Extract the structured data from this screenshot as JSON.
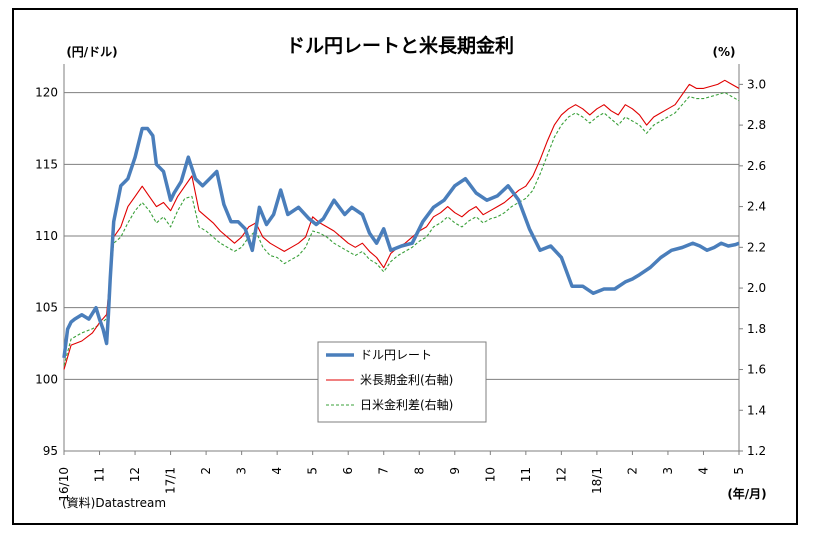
{
  "chart_data": {
    "type": "line",
    "title": "ドル円レートと米長期金利",
    "y_left_unit": "(円/ドル)",
    "y_right_unit": "(%)",
    "x_unit": "(年/月)",
    "source": "(資料)Datastream",
    "ylim_left": [
      95,
      122
    ],
    "ylim_right": [
      1.2,
      3.1
    ],
    "y_left_ticks": [
      "95",
      "100",
      "105",
      "110",
      "115",
      "120"
    ],
    "y_right_ticks": [
      "1.2",
      "1.4",
      "1.6",
      "1.8",
      "2.0",
      "2.2",
      "2.4",
      "2.6",
      "2.8",
      "3.0"
    ],
    "x_ticks": [
      "16/10",
      "11",
      "12",
      "17/1",
      "2",
      "3",
      "4",
      "5",
      "6",
      "7",
      "8",
      "9",
      "10",
      "11",
      "12",
      "18/1",
      "2",
      "3",
      "4",
      "5"
    ],
    "grid": "horizontal",
    "legend_position": "center-bottom",
    "x_range_months": [
      0,
      19
    ],
    "series": [
      {
        "name": "ドル円レート",
        "axis": "left",
        "color": "#4a7ebb",
        "style": "thick",
        "x": [
          0,
          0.1,
          0.2,
          0.3,
          0.5,
          0.7,
          0.9,
          1.0,
          1.1,
          1.2,
          1.25,
          1.3,
          1.4,
          1.6,
          1.8,
          2.0,
          2.2,
          2.35,
          2.5,
          2.6,
          2.8,
          3.0,
          3.1,
          3.3,
          3.5,
          3.7,
          3.9,
          4.1,
          4.3,
          4.5,
          4.7,
          4.9,
          5.1,
          5.3,
          5.5,
          5.7,
          5.9,
          6.1,
          6.3,
          6.6,
          6.9,
          7.1,
          7.3,
          7.6,
          7.9,
          8.1,
          8.4,
          8.6,
          8.8,
          9.0,
          9.2,
          9.5,
          9.8,
          10.1,
          10.4,
          10.7,
          11.0,
          11.3,
          11.6,
          11.9,
          12.2,
          12.5,
          12.8,
          13.1,
          13.4,
          13.7,
          14.0,
          14.3,
          14.6,
          14.9,
          15.2,
          15.5,
          15.8,
          16.0,
          16.2,
          16.5,
          16.8,
          17.1,
          17.4,
          17.7,
          17.9,
          18.1,
          18.3,
          18.5,
          18.7,
          18.9,
          19.0
        ],
        "values": [
          101.5,
          103.5,
          104.0,
          104.2,
          104.5,
          104.2,
          105.0,
          104.2,
          103.5,
          102.5,
          104.5,
          107.0,
          111.0,
          113.5,
          114.0,
          115.5,
          117.5,
          117.5,
          117.0,
          115.0,
          114.5,
          112.5,
          113.0,
          113.8,
          115.5,
          114.0,
          113.5,
          114.0,
          114.5,
          112.2,
          111.0,
          111.0,
          110.5,
          109.0,
          112.0,
          110.8,
          111.5,
          113.2,
          111.5,
          112.0,
          111.2,
          110.8,
          111.2,
          112.5,
          111.5,
          112.0,
          111.5,
          110.2,
          109.5,
          110.5,
          109.0,
          109.3,
          109.5,
          111.0,
          112.0,
          112.5,
          113.5,
          114.0,
          113.0,
          112.5,
          112.8,
          113.5,
          112.5,
          110.5,
          109.0,
          109.3,
          108.5,
          106.5,
          106.5,
          106.0,
          106.3,
          106.3,
          106.8,
          107.0,
          107.3,
          107.8,
          108.5,
          109.0,
          109.2,
          109.5,
          109.3,
          109.0,
          109.2,
          109.5,
          109.3,
          109.4,
          109.5
        ]
      },
      {
        "name": "米長期金利(右軸)",
        "axis": "right",
        "color": "#e00000",
        "style": "thin",
        "x": [
          0,
          0.2,
          0.5,
          0.8,
          1.0,
          1.2,
          1.4,
          1.6,
          1.8,
          2.0,
          2.2,
          2.4,
          2.6,
          2.8,
          3.0,
          3.2,
          3.4,
          3.6,
          3.8,
          4.0,
          4.2,
          4.4,
          4.6,
          4.8,
          5.0,
          5.2,
          5.4,
          5.6,
          5.8,
          6.0,
          6.2,
          6.4,
          6.6,
          6.8,
          7.0,
          7.2,
          7.4,
          7.6,
          7.8,
          8.0,
          8.2,
          8.4,
          8.6,
          8.8,
          9.0,
          9.2,
          9.4,
          9.6,
          9.8,
          10.0,
          10.2,
          10.4,
          10.6,
          10.8,
          11.0,
          11.2,
          11.4,
          11.6,
          11.8,
          12.0,
          12.2,
          12.4,
          12.6,
          12.8,
          13.0,
          13.2,
          13.4,
          13.6,
          13.8,
          14.0,
          14.2,
          14.4,
          14.6,
          14.8,
          15.0,
          15.2,
          15.4,
          15.6,
          15.8,
          16.0,
          16.2,
          16.4,
          16.6,
          16.8,
          17.0,
          17.2,
          17.4,
          17.6,
          17.8,
          18.0,
          18.2,
          18.4,
          18.6,
          18.8,
          19.0
        ],
        "values": [
          1.6,
          1.72,
          1.74,
          1.78,
          1.83,
          1.87,
          2.25,
          2.3,
          2.4,
          2.45,
          2.5,
          2.45,
          2.4,
          2.42,
          2.38,
          2.45,
          2.5,
          2.55,
          2.38,
          2.35,
          2.32,
          2.28,
          2.25,
          2.22,
          2.25,
          2.3,
          2.32,
          2.25,
          2.22,
          2.2,
          2.18,
          2.2,
          2.22,
          2.25,
          2.35,
          2.32,
          2.3,
          2.28,
          2.25,
          2.22,
          2.2,
          2.22,
          2.18,
          2.15,
          2.1,
          2.17,
          2.2,
          2.22,
          2.25,
          2.28,
          2.3,
          2.35,
          2.37,
          2.4,
          2.37,
          2.35,
          2.38,
          2.4,
          2.36,
          2.38,
          2.4,
          2.42,
          2.45,
          2.48,
          2.5,
          2.55,
          2.63,
          2.72,
          2.8,
          2.85,
          2.88,
          2.9,
          2.88,
          2.85,
          2.88,
          2.9,
          2.87,
          2.85,
          2.9,
          2.88,
          2.85,
          2.8,
          2.84,
          2.86,
          2.88,
          2.9,
          2.95,
          3.0,
          2.98,
          2.98,
          2.99,
          3.0,
          3.02,
          3.0,
          2.98
        ]
      },
      {
        "name": "日米金利差(右軸)",
        "axis": "right",
        "color": "#3aa03a",
        "style": "dashed",
        "x": [
          0,
          0.2,
          0.5,
          0.8,
          1.0,
          1.2,
          1.4,
          1.6,
          1.8,
          2.0,
          2.2,
          2.4,
          2.6,
          2.8,
          3.0,
          3.2,
          3.4,
          3.6,
          3.8,
          4.0,
          4.2,
          4.4,
          4.6,
          4.8,
          5.0,
          5.2,
          5.4,
          5.6,
          5.8,
          6.0,
          6.2,
          6.4,
          6.6,
          6.8,
          7.0,
          7.2,
          7.4,
          7.6,
          7.8,
          8.0,
          8.2,
          8.4,
          8.6,
          8.8,
          9.0,
          9.2,
          9.4,
          9.6,
          9.8,
          10.0,
          10.2,
          10.4,
          10.6,
          10.8,
          11.0,
          11.2,
          11.4,
          11.6,
          11.8,
          12.0,
          12.2,
          12.4,
          12.6,
          12.8,
          13.0,
          13.2,
          13.4,
          13.6,
          13.8,
          14.0,
          14.2,
          14.4,
          14.6,
          14.8,
          15.0,
          15.2,
          15.4,
          15.6,
          15.8,
          16.0,
          16.2,
          16.4,
          16.6,
          16.8,
          17.0,
          17.2,
          17.4,
          17.6,
          17.8,
          18.0,
          18.2,
          18.4,
          18.6,
          18.8,
          19.0
        ],
        "values": [
          1.62,
          1.75,
          1.78,
          1.8,
          1.82,
          1.85,
          2.22,
          2.25,
          2.32,
          2.38,
          2.42,
          2.38,
          2.32,
          2.35,
          2.3,
          2.38,
          2.44,
          2.45,
          2.3,
          2.28,
          2.25,
          2.22,
          2.2,
          2.18,
          2.2,
          2.25,
          2.28,
          2.2,
          2.16,
          2.15,
          2.12,
          2.14,
          2.16,
          2.2,
          2.28,
          2.27,
          2.25,
          2.22,
          2.2,
          2.18,
          2.16,
          2.18,
          2.14,
          2.12,
          2.08,
          2.13,
          2.16,
          2.18,
          2.2,
          2.23,
          2.25,
          2.3,
          2.32,
          2.35,
          2.32,
          2.3,
          2.33,
          2.35,
          2.32,
          2.34,
          2.35,
          2.37,
          2.4,
          2.42,
          2.44,
          2.48,
          2.56,
          2.65,
          2.74,
          2.8,
          2.84,
          2.86,
          2.84,
          2.81,
          2.84,
          2.86,
          2.83,
          2.8,
          2.84,
          2.82,
          2.8,
          2.76,
          2.8,
          2.82,
          2.84,
          2.86,
          2.9,
          2.94,
          2.93,
          2.93,
          2.94,
          2.95,
          2.96,
          2.94,
          2.92
        ]
      }
    ]
  }
}
